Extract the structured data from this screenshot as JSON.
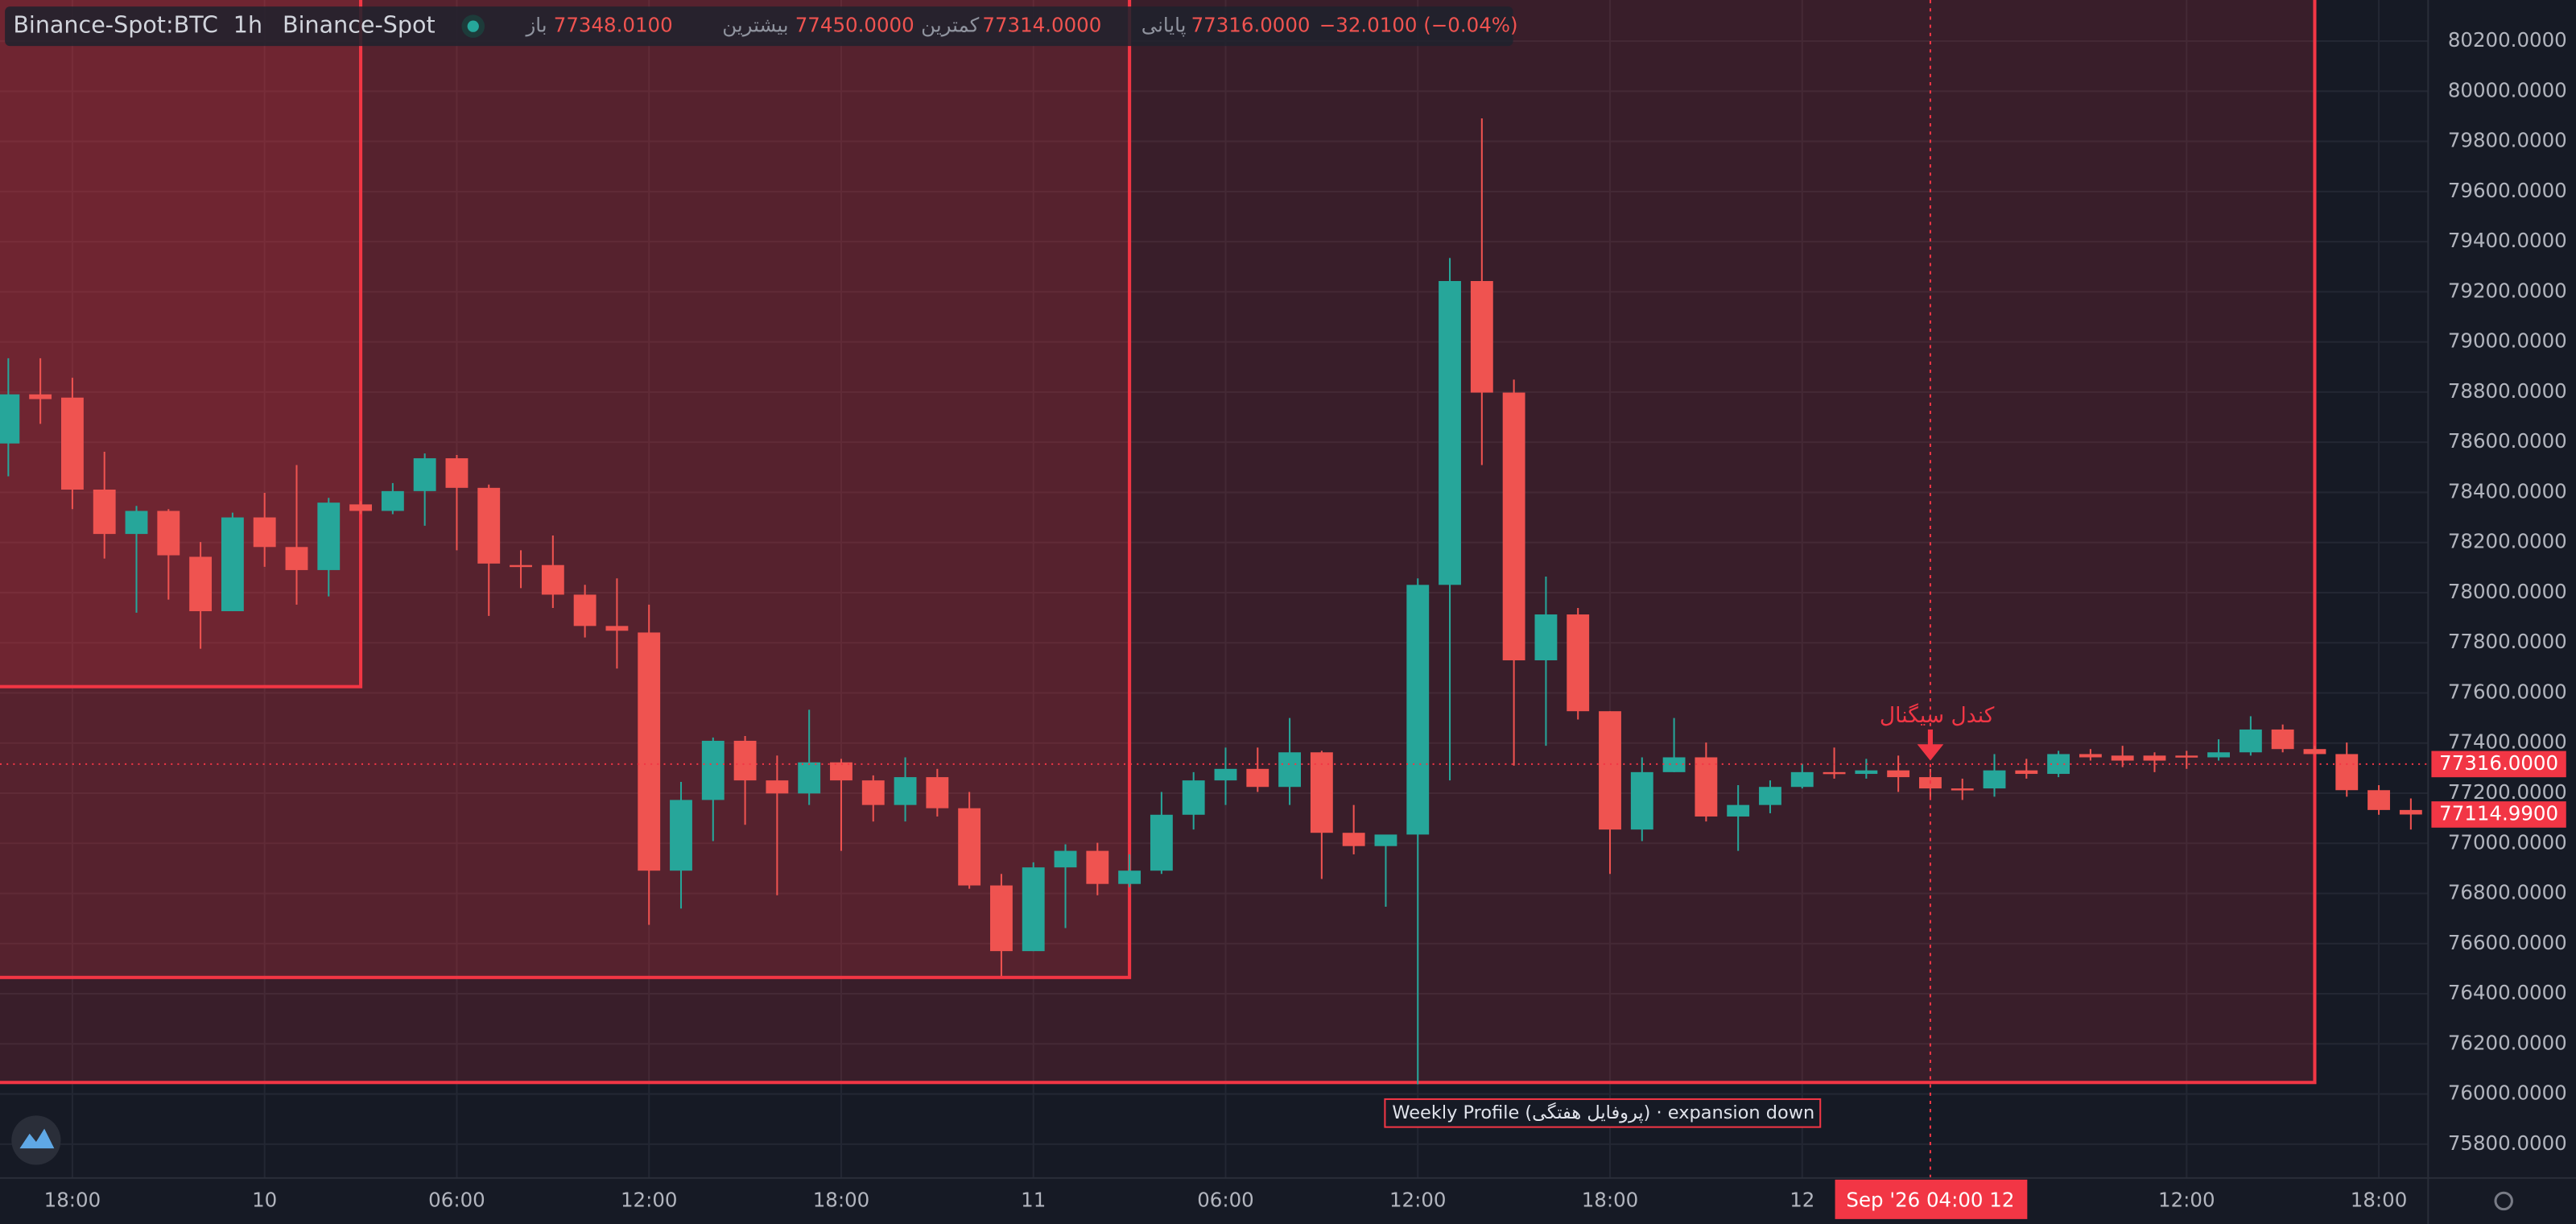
{
  "chart_data": {
    "type": "candlestick",
    "header": {
      "symbol": "Binance-Spot:BTC",
      "interval": "1h",
      "exchange": "Binance-Spot",
      "open_label": "باز",
      "open": "77348.0100",
      "high_label": "بیشترین",
      "high": "77450.0000",
      "low_label": "کمترین",
      "low": "77314.0000",
      "close_label": "پایانی",
      "close": "77316.0000",
      "change": "−32.0100 (−0.04%)"
    },
    "up_color": "#26a69a",
    "down_color": "#ef5350",
    "profile_color": "#f23645",
    "open": [
      78595,
      78791,
      78778,
      78411,
      78234,
      78326,
      78143,
      77926,
      78300,
      78182,
      78090,
      78352,
      78326,
      78405,
      78536,
      78418,
      78110,
      78110,
      77992,
      77867,
      77841,
      76891,
      77173,
      77409,
      77251,
      77199,
      77323,
      77251,
      77153,
      77264,
      77140,
      76832,
      76570,
      76904,
      76970,
      76838,
      76891,
      77114,
      77251,
      77297,
      77225,
      77363,
      77042,
      76989,
      77035,
      78031,
      79243,
      78798,
      77730,
      77913,
      77527,
      77055,
      77284,
      77343,
      77107,
      77153,
      77225,
      77284,
      77277,
      77291,
      77264,
      77219,
      77219,
      77291,
      77277,
      77356,
      77350,
      77350,
      77350,
      77343,
      77363,
      77454,
      77376,
      77356,
      77212,
      77133
    ],
    "high": [
      78935,
      78935,
      78857,
      78562,
      78346,
      78333,
      78202,
      78319,
      78398,
      78509,
      78378,
      78365,
      78437,
      78555,
      78549,
      78431,
      78169,
      78228,
      78031,
      78057,
      77952,
      77245,
      77422,
      77428,
      77350,
      77533,
      77337,
      77271,
      77343,
      77297,
      77205,
      76878,
      76924,
      76996,
      77002,
      76956,
      77205,
      77284,
      77382,
      77382,
      77500,
      77369,
      77153,
      77009,
      78057,
      79335,
      79892,
      78850,
      78064,
      77939,
      77527,
      77343,
      77500,
      77402,
      77232,
      77251,
      77317,
      77382,
      77337,
      77350,
      77297,
      77258,
      77356,
      77337,
      77369,
      77376,
      77389,
      77363,
      77369,
      77415,
      77507,
      77474,
      77389,
      77402,
      77232,
      77179
    ],
    "low": [
      78464,
      78673,
      78333,
      78136,
      77920,
      77972,
      77776,
      77926,
      78103,
      77952,
      77985,
      78313,
      78313,
      78267,
      78169,
      77907,
      78018,
      77939,
      77821,
      77697,
      76675,
      76740,
      77009,
      77074,
      76793,
      77153,
      76970,
      77087,
      77087,
      77107,
      76819,
      76471,
      76570,
      76662,
      76793,
      76825,
      76878,
      77055,
      77153,
      77205,
      77153,
      76858,
      76956,
      76747,
      76039,
      77251,
      78509,
      77310,
      77389,
      77494,
      76878,
      77009,
      77284,
      77087,
      76970,
      77120,
      77219,
      77258,
      77258,
      77205,
      77173,
      77173,
      77186,
      77258,
      77264,
      77330,
      77304,
      77284,
      77297,
      77330,
      77350,
      77363,
      77356,
      77186,
      77114,
      77055
    ],
    "close": [
      78791,
      78772,
      78411,
      78234,
      78326,
      78149,
      77926,
      78300,
      78182,
      78090,
      78359,
      78326,
      78405,
      78536,
      78418,
      78116,
      78103,
      77992,
      77867,
      77848,
      76891,
      77173,
      77409,
      77251,
      77199,
      77323,
      77251,
      77153,
      77264,
      77140,
      76832,
      76570,
      76904,
      76970,
      76838,
      76891,
      77114,
      77251,
      77297,
      77225,
      77363,
      77042,
      76989,
      77035,
      78031,
      79243,
      78798,
      77730,
      77913,
      77527,
      77055,
      77284,
      77343,
      77107,
      77153,
      77225,
      77284,
      77277,
      77291,
      77264,
      77219,
      77212,
      77291,
      77277,
      77356,
      77343,
      77330,
      77330,
      77343,
      77363,
      77454,
      77376,
      77356,
      77212,
      77133,
      77114.99
    ],
    "xlim": [
      -0.26,
      75.54
    ],
    "ylim": [
      75665,
      80364
    ],
    "xticks": [
      {
        "value": 2,
        "label": "18:00"
      },
      {
        "value": 8,
        "label": "10"
      },
      {
        "value": 14,
        "label": "06:00"
      },
      {
        "value": 20,
        "label": "12:00"
      },
      {
        "value": 26,
        "label": "18:00"
      },
      {
        "value": 32,
        "label": "11"
      },
      {
        "value": 38,
        "label": "06:00"
      },
      {
        "value": 44,
        "label": "12:00"
      },
      {
        "value": 50,
        "label": "18:00"
      },
      {
        "value": 56,
        "label": "12"
      },
      {
        "value": 68,
        "label": "12:00"
      },
      {
        "value": 74,
        "label": "18:00"
      }
    ],
    "yticks": [
      {
        "value": 75800,
        "label": "75800.0000"
      },
      {
        "value": 76000,
        "label": "76000.0000"
      },
      {
        "value": 76200,
        "label": "76200.0000"
      },
      {
        "value": 76400,
        "label": "76400.0000"
      },
      {
        "value": 76600,
        "label": "76600.0000"
      },
      {
        "value": 76800,
        "label": "76800.0000"
      },
      {
        "value": 77000,
        "label": "77000.0000"
      },
      {
        "value": 77200,
        "label": "77200.0000"
      },
      {
        "value": 77400,
        "label": "77400.0000"
      },
      {
        "value": 77600,
        "label": "77600.0000"
      },
      {
        "value": 77800,
        "label": "77800.0000"
      },
      {
        "value": 78000,
        "label": "78000.0000"
      },
      {
        "value": 78200,
        "label": "78200.0000"
      },
      {
        "value": 78400,
        "label": "78400.0000"
      },
      {
        "value": 78600,
        "label": "78600.0000"
      },
      {
        "value": 78800,
        "label": "78800.0000"
      },
      {
        "value": 79000,
        "label": "79000.0000"
      },
      {
        "value": 79200,
        "label": "79200.0000"
      },
      {
        "value": 79400,
        "label": "79400.0000"
      },
      {
        "value": 79600,
        "label": "79600.0000"
      },
      {
        "value": 79800,
        "label": "79800.0000"
      },
      {
        "value": 80000,
        "label": "80000.0000"
      },
      {
        "value": 80200,
        "label": "80200.0000"
      }
    ],
    "grid": true,
    "profiles": [
      {
        "end": 11,
        "low": 77625
      },
      {
        "end": 35,
        "low": 76465
      },
      {
        "end": 72,
        "low": 76046
      }
    ],
    "profile_label": "Weekly Profile (پروفایل هفتگی) · expansion down",
    "signal": {
      "x": 60,
      "text": "کندل سیگنال"
    },
    "crosshair": {
      "x": 60,
      "price": {
        "value": 77316,
        "label": "77316.0000"
      },
      "time_label": "Sep '26   04:00 12"
    },
    "last_price": {
      "value": 77114.99,
      "label": "77114.9900"
    }
  }
}
